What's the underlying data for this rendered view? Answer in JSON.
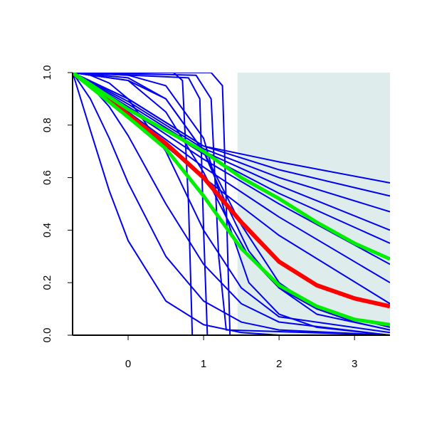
{
  "chart_data": {
    "type": "line",
    "xlim": [
      -0.736,
      3.47
    ],
    "ylim": [
      0,
      1
    ],
    "xticks": [
      0,
      1,
      2,
      3
    ],
    "yticks": [
      {
        "value": 0,
        "label": "0.0"
      },
      0.2,
      0.4,
      0.6,
      0.8,
      {
        "value": 1,
        "label": "1.0"
      }
    ],
    "shaded_region": {
      "xlim": [
        1.45,
        3.47
      ],
      "ylim": [
        0,
        1
      ],
      "color": "#deecec"
    },
    "series": [
      {
        "color": "#0000ee",
        "width": 2,
        "x": [
          -0.736,
          -0.5,
          -0.25,
          0,
          0.5,
          1,
          1.5,
          2,
          3.47
        ],
        "values": [
          1,
          0.78,
          0.55,
          0.36,
          0.13,
          0.04,
          0.01,
          0,
          0
        ]
      },
      {
        "color": "#0000ee",
        "width": 2,
        "x": [
          -0.736,
          -0.5,
          -0.25,
          0,
          0.5,
          1,
          1.5,
          2,
          3.47
        ],
        "values": [
          1,
          0.9,
          0.75,
          0.58,
          0.3,
          0.13,
          0.05,
          0.02,
          0
        ]
      },
      {
        "color": "#0000ee",
        "width": 2,
        "x": [
          -0.736,
          -0.5,
          -0.25,
          0,
          0.5,
          1,
          1.5,
          2,
          3.47
        ],
        "values": [
          1,
          0.95,
          0.87,
          0.76,
          0.5,
          0.27,
          0.12,
          0.05,
          0
        ]
      },
      {
        "color": "#0000ee",
        "width": 2,
        "x": [
          -0.736,
          -0.5,
          -0.25,
          0,
          0.5,
          1,
          1.5,
          2,
          3.47
        ],
        "values": [
          1,
          0.99,
          0.96,
          0.9,
          0.7,
          0.4,
          0.18,
          0.07,
          0.01
        ]
      },
      {
        "color": "#0000ee",
        "width": 2,
        "x": [
          -0.736,
          0.6,
          0.72,
          0.8,
          0.85,
          3.47
        ],
        "values": [
          1,
          1,
          0.97,
          0.5,
          0,
          0
        ]
      },
      {
        "color": "#0000ee",
        "width": 2,
        "x": [
          -0.736,
          0.8,
          0.95,
          1.0,
          1.05,
          3.47
        ],
        "values": [
          1,
          0.98,
          0.9,
          0.4,
          0,
          0
        ]
      },
      {
        "color": "#0000ee",
        "width": 2,
        "x": [
          -0.736,
          1.1,
          1.25,
          1.3,
          1.35,
          3.47
        ],
        "values": [
          1,
          1,
          0.95,
          0.5,
          0,
          0
        ]
      },
      {
        "color": "#0000ee",
        "width": 2,
        "x": [
          -0.736,
          0.9,
          1.1,
          1.2,
          1.3,
          3.47
        ],
        "values": [
          1,
          0.99,
          0.9,
          0.3,
          0.02,
          0
        ]
      },
      {
        "color": "#0000ee",
        "width": 2,
        "x": [
          -0.736,
          0,
          0.5,
          1,
          1.3,
          1.6,
          2,
          2.5,
          3.47
        ],
        "values": [
          1,
          0.99,
          0.95,
          0.75,
          0.45,
          0.2,
          0.08,
          0.03,
          0
        ]
      },
      {
        "color": "#0000ee",
        "width": 2,
        "x": [
          -0.736,
          0,
          0.5,
          1,
          1.3,
          1.6,
          2,
          2.5,
          3.47
        ],
        "values": [
          1,
          0.98,
          0.9,
          0.7,
          0.5,
          0.32,
          0.18,
          0.08,
          0.02
        ]
      },
      {
        "color": "#0000ee",
        "width": 2,
        "x": [
          -0.736,
          0,
          0.5,
          1,
          1.3,
          1.6,
          2,
          2.5,
          3.47
        ],
        "values": [
          1,
          0.97,
          0.85,
          0.62,
          0.45,
          0.3,
          0.18,
          0.1,
          0.03
        ]
      },
      {
        "color": "#0000ee",
        "width": 2,
        "x": [
          -0.736,
          0,
          0.5,
          1,
          1.5,
          2,
          2.5,
          3,
          3.47
        ],
        "values": [
          1,
          0.97,
          0.9,
          0.7,
          0.42,
          0.2,
          0.1,
          0.05,
          0.02
        ]
      },
      {
        "color": "#0000ee",
        "width": 2,
        "x": [
          -0.736,
          0,
          1,
          2,
          3.47
        ],
        "values": [
          1,
          0.9,
          0.72,
          0.66,
          0.58
        ]
      },
      {
        "color": "#0000ee",
        "width": 2,
        "x": [
          -0.736,
          0,
          1,
          2,
          3.47
        ],
        "values": [
          1,
          0.9,
          0.72,
          0.63,
          0.53
        ]
      },
      {
        "color": "#0000ee",
        "width": 2,
        "x": [
          -0.736,
          0,
          1,
          2,
          3.47
        ],
        "values": [
          1,
          0.89,
          0.71,
          0.6,
          0.47
        ]
      },
      {
        "color": "#0000ee",
        "width": 2,
        "x": [
          -0.736,
          0,
          1,
          2,
          3.47
        ],
        "values": [
          1,
          0.88,
          0.7,
          0.57,
          0.4
        ]
      },
      {
        "color": "#0000ee",
        "width": 2,
        "x": [
          -0.736,
          0,
          1,
          2,
          3.47
        ],
        "values": [
          1,
          0.87,
          0.69,
          0.54,
          0.35
        ]
      },
      {
        "color": "#0000ee",
        "width": 2,
        "x": [
          -0.736,
          0,
          1,
          2,
          3.47
        ],
        "values": [
          1,
          0.86,
          0.67,
          0.5,
          0.27
        ]
      },
      {
        "color": "#0000ee",
        "width": 2,
        "x": [
          -0.736,
          0,
          1,
          2,
          3.47
        ],
        "values": [
          1,
          0.85,
          0.64,
          0.45,
          0.2
        ]
      },
      {
        "color": "#0000ee",
        "width": 2,
        "x": [
          -0.736,
          0,
          1,
          2,
          3.47
        ],
        "values": [
          1,
          0.84,
          0.6,
          0.38,
          0.12
        ]
      },
      {
        "color": "#ff0000",
        "width": 6,
        "x": [
          -0.736,
          0,
          0.5,
          1,
          1.5,
          2,
          2.5,
          3,
          3.47
        ],
        "values": [
          1,
          0.84,
          0.73,
          0.6,
          0.43,
          0.28,
          0.19,
          0.14,
          0.11
        ]
      },
      {
        "color": "#00ee00",
        "width": 5,
        "x": [
          -0.736,
          0,
          0.5,
          1,
          1.5,
          2,
          2.5,
          3,
          3.47
        ],
        "values": [
          1,
          0.86,
          0.78,
          0.7,
          0.6,
          0.52,
          0.43,
          0.35,
          0.29
        ]
      },
      {
        "color": "#00ee00",
        "width": 5,
        "x": [
          -0.736,
          0,
          0.5,
          1,
          1.5,
          2,
          2.5,
          3,
          3.47
        ],
        "values": [
          1,
          0.83,
          0.71,
          0.53,
          0.33,
          0.19,
          0.11,
          0.06,
          0.04
        ]
      }
    ]
  }
}
